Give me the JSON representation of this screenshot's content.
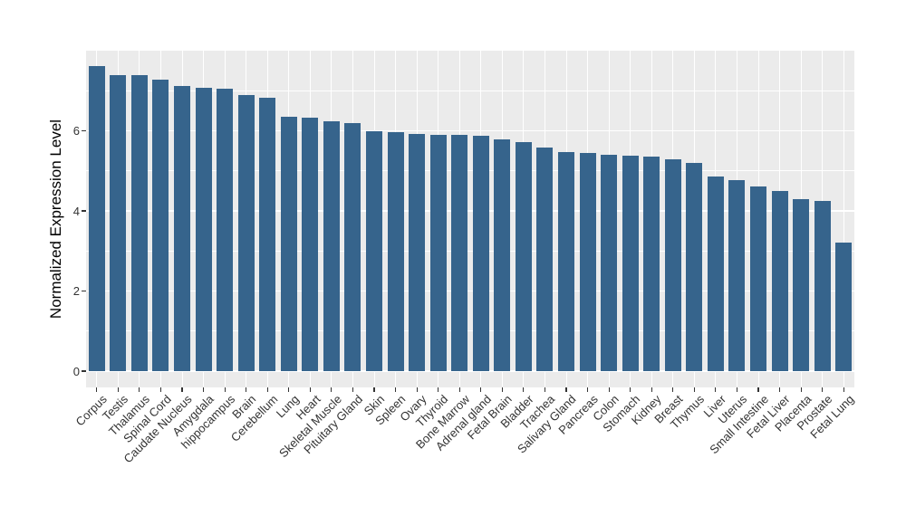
{
  "chart_data": {
    "type": "bar",
    "title": "",
    "xlabel": "",
    "ylabel": "Normalized Expression Level",
    "categories": [
      "Corpus",
      "Testis",
      "Thalamus",
      "Spinal Cord",
      "Caudate Nucleus",
      "Amygdala",
      "hippocampus",
      "Brain",
      "Cerebellum",
      "Lung",
      "Heart",
      "Skeletal Muscle",
      "Pituitary Gland",
      "Skin",
      "Spleen",
      "Ovary",
      "Thyroid",
      "Bone Marrow",
      "Adrenal gland",
      "Fetal Brain",
      "Bladder",
      "Trachea",
      "Salivary Gland",
      "Pancreas",
      "Colon",
      "Stomach",
      "Kidney",
      "Breast",
      "Thymus",
      "Liver",
      "Uterus",
      "Small Intestine",
      "Fetal Liver",
      "Placenta",
      "Prostate",
      "Fetal Lung"
    ],
    "values": [
      7.62,
      7.4,
      7.38,
      7.28,
      7.11,
      7.07,
      7.04,
      6.9,
      6.83,
      6.36,
      6.33,
      6.24,
      6.2,
      6.0,
      5.96,
      5.91,
      5.9,
      5.89,
      5.88,
      5.79,
      5.72,
      5.58,
      5.47,
      5.45,
      5.39,
      5.38,
      5.36,
      5.28,
      5.2,
      4.86,
      4.77,
      4.6,
      4.5,
      4.3,
      4.24,
      3.21
    ],
    "ylim": [
      -0.4,
      8.0
    ],
    "yticks": [
      0,
      2,
      4,
      6
    ],
    "ytick_labels": [
      "0",
      "2",
      "4",
      "6"
    ],
    "minor_gridlines": [
      1,
      3,
      5,
      7
    ],
    "x_label_angle_deg": -45,
    "grid": true,
    "legend_position": "none",
    "bar_color": "#36648C",
    "panel_background": "#EBEBEB",
    "gridline_color": "#FFFFFF",
    "tick_color": "#333333",
    "axis_text_color": "#333333"
  }
}
